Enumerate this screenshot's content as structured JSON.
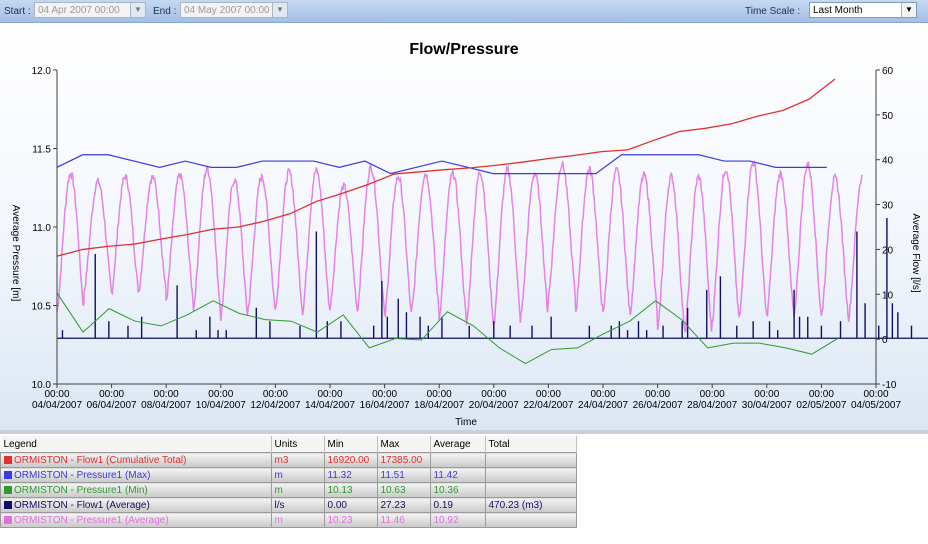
{
  "toolbar": {
    "start_label": "Start :",
    "start_value": "04 Apr 2007 00:00",
    "end_label": "End :",
    "end_value": "04 May 2007 00:00",
    "timescale_label": "Time Scale :",
    "timescale_value": "Last Month"
  },
  "chart_data": {
    "type": "line",
    "title": "Flow/Pressure",
    "xlabel": "Time",
    "ylabel_left": "Average Pressure [m]",
    "ylabel_right": "Average Flow [l/s]",
    "ylim_left": [
      10.0,
      12.0
    ],
    "ylim_right": [
      -10,
      60
    ],
    "yticks_left": [
      "10.0",
      "10.5",
      "11.0",
      "11.5",
      "12.0"
    ],
    "yticks_right": [
      "-10",
      "0",
      "10",
      "20",
      "30",
      "40",
      "50",
      "60"
    ],
    "xtick_times": [
      "00:00",
      "00:00",
      "00:00",
      "00:00",
      "00:00",
      "00:00",
      "00:00",
      "00:00",
      "00:00",
      "00:00",
      "00:00",
      "00:00",
      "00:00",
      "00:00",
      "00:00",
      "00:00"
    ],
    "xtick_dates": [
      "04/04/2007",
      "06/04/2007",
      "08/04/2007",
      "10/04/2007",
      "12/04/2007",
      "14/04/2007",
      "16/04/2007",
      "18/04/2007",
      "20/04/2007",
      "22/04/2007",
      "24/04/2007",
      "26/04/2007",
      "28/04/2007",
      "30/04/2007",
      "02/05/2007",
      "04/05/2007"
    ],
    "x_day_range": [
      0,
      30
    ],
    "grid": false,
    "series": [
      {
        "name": "ORMISTON - Flow1 (Cumulative Total)",
        "color": "#e03030",
        "axis": "right",
        "x": [
          0,
          1,
          2,
          3,
          4,
          5,
          6,
          7,
          8,
          9,
          10,
          11,
          12,
          13,
          14,
          15,
          16,
          17,
          18,
          19,
          20,
          21,
          22,
          23,
          24,
          25,
          26,
          27,
          28,
          29,
          30
        ],
        "values": [
          18.5,
          20.0,
          20.7,
          21.2,
          22.3,
          23.3,
          24.5,
          25.0,
          26.3,
          28.0,
          30.7,
          32.5,
          34.5,
          36.8,
          37.3,
          37.8,
          38.2,
          38.8,
          39.5,
          40.3,
          41.0,
          41.8,
          42.2,
          44.3,
          46.3,
          47.0,
          48.0,
          49.7,
          51.0,
          53.5,
          58.0
        ],
        "x_end": 28.5
      },
      {
        "name": "ORMISTON - Pressure1 (Max)",
        "color": "#3a3ae0",
        "axis": "left",
        "x": [
          0,
          1,
          2,
          3,
          4,
          5,
          6,
          7,
          8,
          9,
          10,
          11,
          12,
          13,
          14,
          15,
          16,
          17,
          18,
          19,
          20,
          21,
          22,
          23,
          24,
          25,
          26,
          27,
          28,
          29,
          30
        ],
        "values": [
          11.38,
          11.46,
          11.46,
          11.42,
          11.38,
          11.42,
          11.38,
          11.38,
          11.42,
          11.42,
          11.42,
          11.38,
          11.42,
          11.34,
          11.38,
          11.42,
          11.38,
          11.34,
          11.34,
          11.34,
          11.34,
          11.34,
          11.46,
          11.46,
          11.46,
          11.46,
          11.42,
          11.42,
          11.38,
          11.38,
          11.38
        ],
        "x_end": 28.2
      },
      {
        "name": "ORMISTON - Pressure1 (Min)",
        "color": "#2f9a2f",
        "axis": "left",
        "x": [
          0,
          1,
          2,
          3,
          4,
          5,
          6,
          7,
          8,
          9,
          10,
          11,
          12,
          13,
          14,
          15,
          16,
          17,
          18,
          19,
          20,
          21,
          22,
          23,
          24,
          25,
          26,
          27,
          28,
          29,
          30
        ],
        "values": [
          10.58,
          10.33,
          10.48,
          10.4,
          10.37,
          10.44,
          10.53,
          10.45,
          10.41,
          10.4,
          10.33,
          10.44,
          10.23,
          10.29,
          10.28,
          10.46,
          10.37,
          10.23,
          10.13,
          10.22,
          10.23,
          10.32,
          10.4,
          10.53,
          10.41,
          10.23,
          10.26,
          10.26,
          10.23,
          10.19,
          10.29
        ],
        "x_end": 28.6
      },
      {
        "name": "ORMISTON - Flow1 (Average)",
        "color": "#101060",
        "axis": "right",
        "baseline": 0.2,
        "spikes": [
          [
            0.2,
            2
          ],
          [
            1.4,
            19
          ],
          [
            1.9,
            4
          ],
          [
            2.6,
            3
          ],
          [
            3.1,
            5
          ],
          [
            4.4,
            12
          ],
          [
            5.1,
            2
          ],
          [
            5.6,
            5
          ],
          [
            5.9,
            2
          ],
          [
            6.2,
            2
          ],
          [
            7.3,
            7
          ],
          [
            7.8,
            4
          ],
          [
            8.9,
            3
          ],
          [
            9.5,
            24
          ],
          [
            9.9,
            4
          ],
          [
            10.4,
            4
          ],
          [
            11.6,
            3
          ],
          [
            11.9,
            13
          ],
          [
            12.1,
            5
          ],
          [
            12.5,
            9
          ],
          [
            12.8,
            6
          ],
          [
            13.3,
            5
          ],
          [
            13.6,
            3
          ],
          [
            14.1,
            5
          ],
          [
            15.1,
            3
          ],
          [
            16.0,
            4
          ],
          [
            16.6,
            3
          ],
          [
            17.4,
            3
          ],
          [
            18.1,
            5
          ],
          [
            19.5,
            3
          ],
          [
            20.3,
            3
          ],
          [
            20.6,
            4
          ],
          [
            20.9,
            2
          ],
          [
            21.3,
            4
          ],
          [
            21.6,
            2
          ],
          [
            22.2,
            3
          ],
          [
            22.9,
            4
          ],
          [
            23.1,
            7
          ],
          [
            23.8,
            11
          ],
          [
            24.3,
            14
          ],
          [
            24.9,
            3
          ],
          [
            25.5,
            4
          ],
          [
            26.1,
            4
          ],
          [
            26.4,
            2
          ],
          [
            27.0,
            11
          ],
          [
            27.2,
            5
          ],
          [
            27.5,
            5
          ],
          [
            28.0,
            3
          ],
          [
            28.7,
            4
          ],
          [
            29.3,
            24
          ],
          [
            29.6,
            8
          ],
          [
            30.1,
            3
          ],
          [
            30.4,
            27
          ],
          [
            30.6,
            8
          ],
          [
            30.8,
            6
          ],
          [
            31.3,
            3
          ]
        ],
        "x_end": 32.5
      },
      {
        "name": "ORMISTON - Pressure1 (Average)",
        "color": "#e070e0",
        "axis": "left",
        "daily_peaks": [
          11.34,
          11.29,
          11.32,
          11.32,
          11.33,
          11.37,
          11.3,
          11.32,
          11.35,
          11.36,
          11.26,
          11.38,
          11.32,
          11.34,
          11.34,
          11.35,
          11.36,
          11.34,
          11.4,
          11.37,
          11.36,
          11.33,
          11.32,
          11.32,
          11.37,
          11.41,
          11.34,
          11.4,
          11.31,
          11.32,
          11.28
        ],
        "daily_troughs": [
          10.46,
          10.6,
          10.58,
          10.6,
          10.53,
          10.48,
          10.42,
          10.48,
          10.47,
          10.46,
          10.49,
          10.47,
          10.42,
          10.48,
          10.42,
          10.38,
          10.38,
          10.44,
          10.56,
          10.46,
          10.44,
          10.46,
          10.33,
          10.32,
          10.4,
          10.43,
          10.43,
          10.44,
          10.43,
          10.42,
          10.27
        ],
        "x_end": 29.5
      }
    ]
  },
  "legend": {
    "headers": [
      "Legend",
      "Units",
      "Min",
      "Max",
      "Average",
      "Total"
    ],
    "rows": [
      {
        "name": "ORMISTON - Flow1 (Cumulative Total)",
        "color": "#e03030",
        "units": "m3",
        "min": "16920.00",
        "max": "17385.00",
        "average": "",
        "total": ""
      },
      {
        "name": "ORMISTON - Pressure1 (Max)",
        "color": "#3a3ae0",
        "units": "m",
        "min": "11.32",
        "max": "11.51",
        "average": "11.42",
        "total": ""
      },
      {
        "name": "ORMISTON - Pressure1 (Min)",
        "color": "#2f9a2f",
        "units": "m",
        "min": "10.13",
        "max": "10.63",
        "average": "10.36",
        "total": ""
      },
      {
        "name": "ORMISTON - Flow1 (Average)",
        "color": "#101060",
        "units": "l/s",
        "min": "0.00",
        "max": "27.23",
        "average": "0.19",
        "total": "470.23 (m3)"
      },
      {
        "name": "ORMISTON - Pressure1 (Average)",
        "color": "#e070e0",
        "units": "m",
        "min": "10.23",
        "max": "11.46",
        "average": "10.92",
        "total": ""
      }
    ]
  }
}
